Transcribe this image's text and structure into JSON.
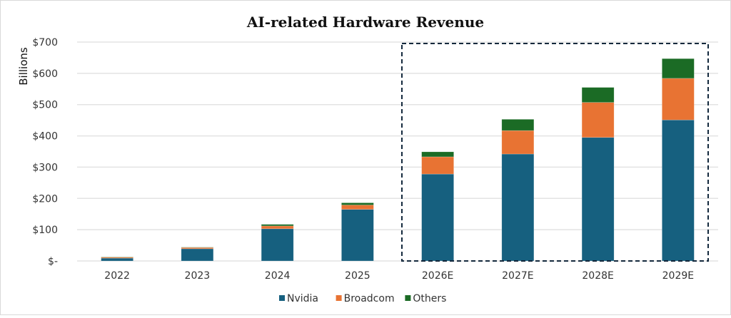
{
  "chart_data": {
    "type": "bar",
    "stacked": true,
    "title": "AI-related Hardware Revenue",
    "xlabel": "",
    "ylabel": "Billions",
    "ylim": [
      0,
      700
    ],
    "yticks": [
      0,
      100,
      200,
      300,
      400,
      500,
      600,
      700
    ],
    "ytick_labels": [
      "$-",
      "$100",
      "$200",
      "$300",
      "$400",
      "$500",
      "$600",
      "$700"
    ],
    "grid": true,
    "categories": [
      "2022",
      "2023",
      "2024",
      "2025",
      "2026E",
      "2027E",
      "2028E",
      "2029E"
    ],
    "series": [
      {
        "name": "Nvidia",
        "color": "#16607f",
        "values": [
          9,
          39,
          103,
          165,
          278,
          342,
          395,
          451
        ]
      },
      {
        "name": "Broadcom",
        "color": "#e87333",
        "values": [
          3,
          4,
          9,
          14,
          55,
          75,
          112,
          133
        ]
      },
      {
        "name": "Others",
        "color": "#1b6b25",
        "values": [
          1,
          1,
          5,
          7,
          16,
          36,
          48,
          63
        ]
      }
    ],
    "highlight_box": {
      "from_category": "2026E",
      "to_category": "2029E",
      "style": "dashed",
      "color": "#14293d"
    },
    "legend_position": "bottom-center"
  }
}
